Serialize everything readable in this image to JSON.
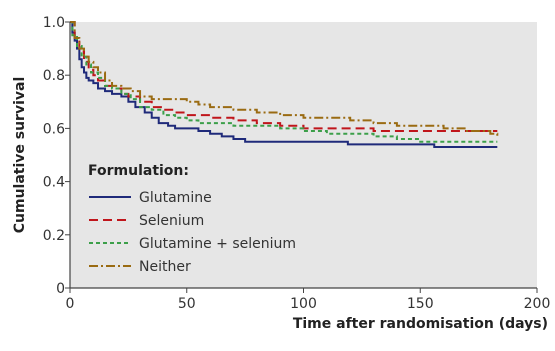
{
  "chart_data": {
    "type": "line",
    "xlabel": "Time after randomisation (days)",
    "ylabel": "Cumulative survival",
    "xlim": [
      0,
      200
    ],
    "ylim": [
      0,
      1.0
    ],
    "xticks": [
      0,
      50,
      100,
      150,
      200
    ],
    "yticks": [
      0,
      0.2,
      0.4,
      0.6,
      0.8,
      1.0
    ],
    "ytick_labels": [
      "0",
      "0.2",
      "0.4",
      "0.6",
      "0.8",
      "1.0"
    ],
    "background": "#e6e6e6",
    "grid": false,
    "legend_title": "Formulation:",
    "legend_position": "bottom-left",
    "series": [
      {
        "name": "Glutamine",
        "color": "#1f2a7a",
        "dash": "solid",
        "points": [
          [
            0,
            1.0
          ],
          [
            1,
            0.96
          ],
          [
            2,
            0.93
          ],
          [
            3,
            0.9
          ],
          [
            4,
            0.86
          ],
          [
            5,
            0.83
          ],
          [
            6,
            0.81
          ],
          [
            7,
            0.79
          ],
          [
            8,
            0.78
          ],
          [
            10,
            0.77
          ],
          [
            12,
            0.75
          ],
          [
            15,
            0.74
          ],
          [
            18,
            0.73
          ],
          [
            22,
            0.72
          ],
          [
            25,
            0.7
          ],
          [
            28,
            0.68
          ],
          [
            32,
            0.66
          ],
          [
            35,
            0.64
          ],
          [
            38,
            0.62
          ],
          [
            42,
            0.61
          ],
          [
            45,
            0.6
          ],
          [
            55,
            0.59
          ],
          [
            60,
            0.58
          ],
          [
            65,
            0.57
          ],
          [
            70,
            0.56
          ],
          [
            75,
            0.55
          ],
          [
            118,
            0.55
          ],
          [
            119,
            0.54
          ],
          [
            155,
            0.54
          ],
          [
            156,
            0.53
          ],
          [
            183,
            0.53
          ]
        ]
      },
      {
        "name": "Selenium",
        "color": "#c0151b",
        "dash": "long-dash",
        "points": [
          [
            0,
            1.0
          ],
          [
            2,
            0.94
          ],
          [
            4,
            0.89
          ],
          [
            6,
            0.85
          ],
          [
            8,
            0.82
          ],
          [
            10,
            0.8
          ],
          [
            12,
            0.78
          ],
          [
            15,
            0.76
          ],
          [
            18,
            0.75
          ],
          [
            22,
            0.73
          ],
          [
            25,
            0.72
          ],
          [
            30,
            0.7
          ],
          [
            35,
            0.68
          ],
          [
            40,
            0.67
          ],
          [
            45,
            0.66
          ],
          [
            50,
            0.65
          ],
          [
            55,
            0.65
          ],
          [
            60,
            0.64
          ],
          [
            70,
            0.63
          ],
          [
            80,
            0.62
          ],
          [
            90,
            0.61
          ],
          [
            100,
            0.6
          ],
          [
            110,
            0.6
          ],
          [
            120,
            0.6
          ],
          [
            130,
            0.59
          ],
          [
            150,
            0.59
          ],
          [
            170,
            0.59
          ],
          [
            183,
            0.59
          ]
        ]
      },
      {
        "name": "Glutamine + selenium",
        "color": "#3c9f4a",
        "dash": "short-dash",
        "points": [
          [
            0,
            1.0
          ],
          [
            1,
            0.95
          ],
          [
            3,
            0.91
          ],
          [
            5,
            0.87
          ],
          [
            7,
            0.84
          ],
          [
            9,
            0.81
          ],
          [
            12,
            0.79
          ],
          [
            15,
            0.76
          ],
          [
            18,
            0.75
          ],
          [
            22,
            0.73
          ],
          [
            26,
            0.71
          ],
          [
            30,
            0.68
          ],
          [
            35,
            0.67
          ],
          [
            40,
            0.65
          ],
          [
            45,
            0.64
          ],
          [
            50,
            0.63
          ],
          [
            55,
            0.62
          ],
          [
            60,
            0.62
          ],
          [
            70,
            0.61
          ],
          [
            80,
            0.61
          ],
          [
            90,
            0.6
          ],
          [
            100,
            0.59
          ],
          [
            110,
            0.58
          ],
          [
            120,
            0.58
          ],
          [
            130,
            0.57
          ],
          [
            140,
            0.56
          ],
          [
            150,
            0.55
          ],
          [
            160,
            0.55
          ],
          [
            183,
            0.55
          ]
        ]
      },
      {
        "name": "Neither",
        "color": "#9a6b12",
        "dash": "dash-dot",
        "points": [
          [
            0,
            1.0
          ],
          [
            2,
            0.94
          ],
          [
            4,
            0.9
          ],
          [
            6,
            0.87
          ],
          [
            8,
            0.85
          ],
          [
            10,
            0.83
          ],
          [
            12,
            0.81
          ],
          [
            15,
            0.78
          ],
          [
            18,
            0.76
          ],
          [
            22,
            0.75
          ],
          [
            26,
            0.74
          ],
          [
            30,
            0.72
          ],
          [
            35,
            0.71
          ],
          [
            40,
            0.71
          ],
          [
            45,
            0.71
          ],
          [
            50,
            0.7
          ],
          [
            55,
            0.69
          ],
          [
            60,
            0.68
          ],
          [
            70,
            0.67
          ],
          [
            80,
            0.66
          ],
          [
            90,
            0.65
          ],
          [
            100,
            0.64
          ],
          [
            110,
            0.64
          ],
          [
            120,
            0.63
          ],
          [
            130,
            0.62
          ],
          [
            140,
            0.61
          ],
          [
            150,
            0.61
          ],
          [
            160,
            0.6
          ],
          [
            170,
            0.59
          ],
          [
            180,
            0.58
          ],
          [
            183,
            0.57
          ]
        ]
      }
    ]
  }
}
